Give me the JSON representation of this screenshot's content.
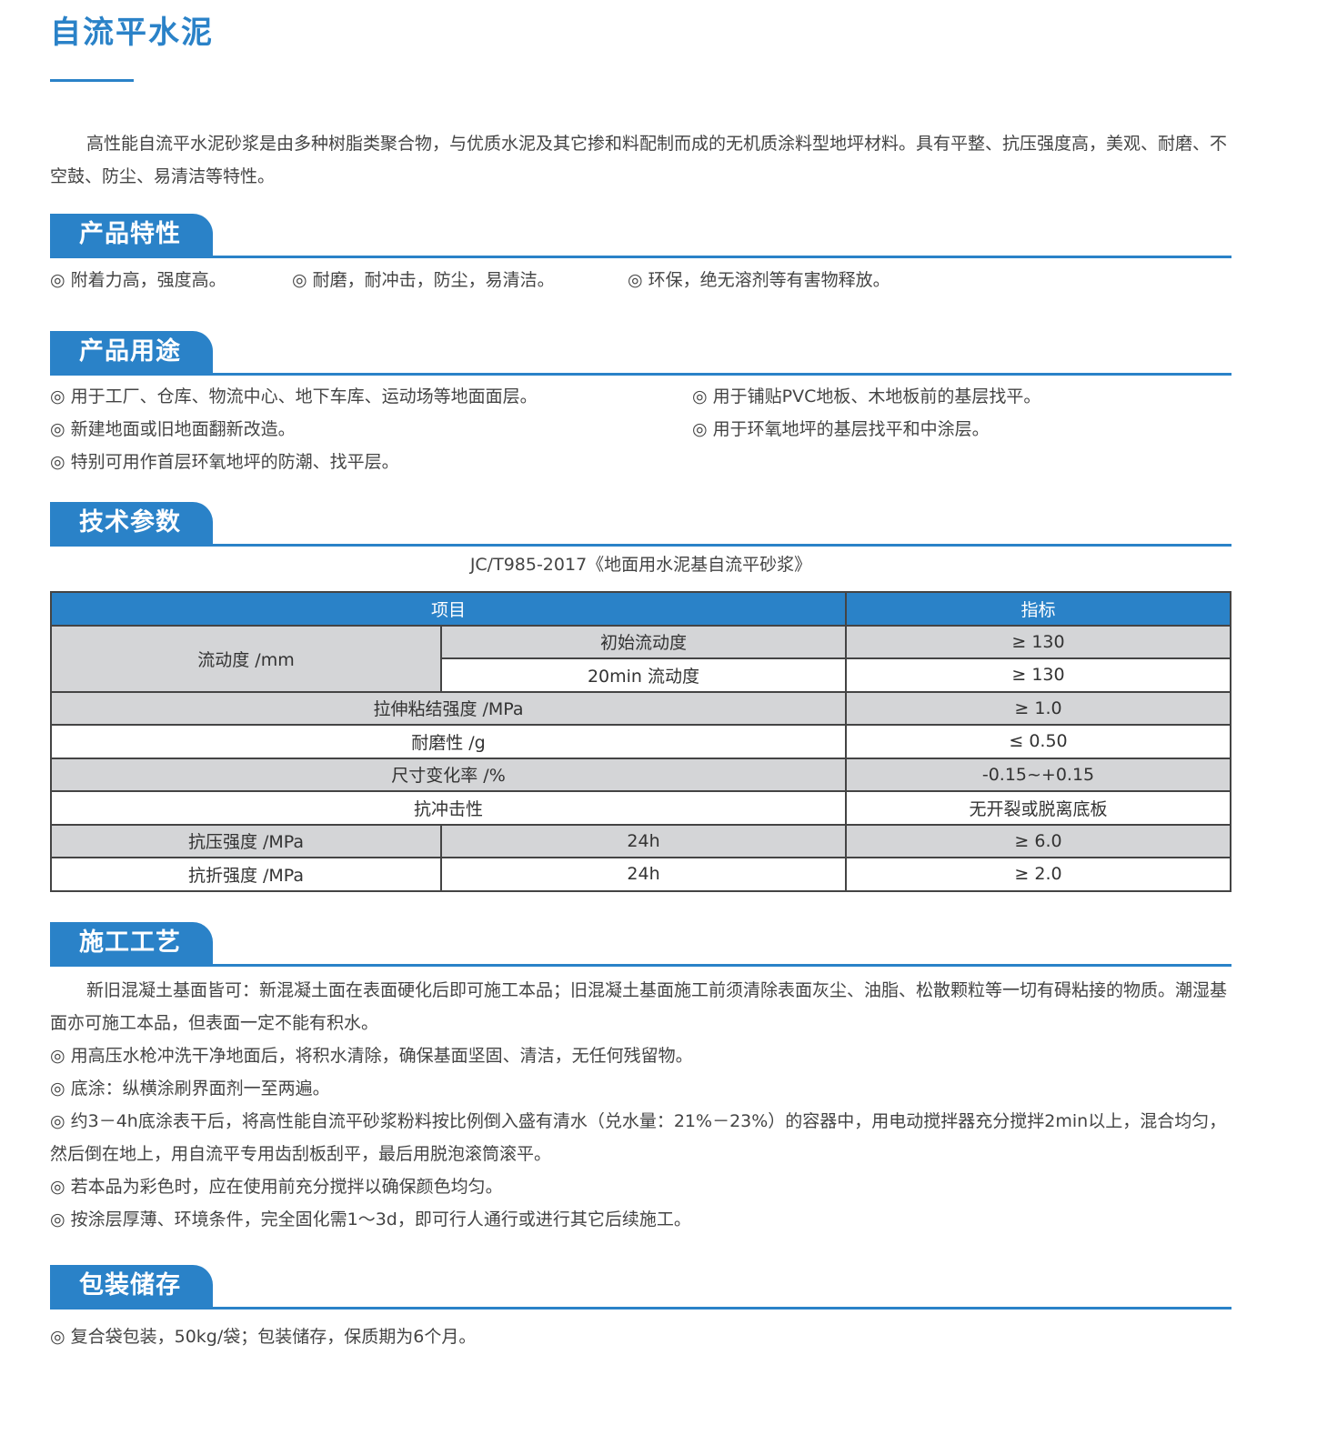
{
  "title": "自流平水泥",
  "intro": "高性能自流平水泥砂浆是由多种树脂类聚合物，与优质水泥及其它掺和料配制而成的无机质涂料型地坪材料。具有平整、抗压强度高，美观、耐磨、不空鼓、防尘、易清洁等特性。",
  "bullet_icon": "double-circle-icon",
  "accent": "#2a82c8",
  "sections": {
    "features": {
      "label": "产品特性",
      "items": [
        "◎ 附着力高，强度高。",
        "◎ 耐磨，耐冲击，防尘，易清洁。",
        "◎ 环保，绝无溶剂等有害物释放。"
      ]
    },
    "uses": {
      "label": "产品用途",
      "items": [
        "◎ 用于工厂、仓库、物流中心、地下车库、运动场等地面面层。",
        "◎ 用于铺贴PVC地板、木地板前的基层找平。",
        "◎ 新建地面或旧地面翻新改造。",
        "◎ 用于环氧地坪的基层找平和中涂层。",
        "◎ 特别可用作首层环氧地坪的防潮、找平层。"
      ]
    },
    "tech": {
      "label": "技术参数",
      "standard": "JC/T985-2017《地面用水泥基自流平砂浆》",
      "header": [
        "项目",
        "指标"
      ],
      "rows": [
        {
          "name": "流动度 /mm",
          "sub": "初始流动度",
          "value": "≥ 130"
        },
        {
          "sub": "20min 流动度",
          "value": "≥ 130"
        },
        {
          "name": "拉伸粘结强度 /MPa",
          "value": "≥ 1.0"
        },
        {
          "name": "耐磨性 /g",
          "value": "≤ 0.50"
        },
        {
          "name": "尺寸变化率 /%",
          "value": "-0.15~+0.15"
        },
        {
          "name": "抗冲击性",
          "value": "无开裂或脱离底板"
        },
        {
          "name": "抗压强度 /MPa",
          "sub": "24h",
          "value": "≥ 6.0"
        },
        {
          "name": "抗折强度 /MPa",
          "sub": "24h",
          "value": "≥ 2.0"
        }
      ]
    },
    "process": {
      "label": "施工工艺",
      "intro": "新旧混凝土基面皆可：新混凝土面在表面硬化后即可施工本品；旧混凝土基面施工前须清除表面灰尘、油脂、松散颗粒等一切有碍粘接的物质。潮湿基面亦可施工本品，但表面一定不能有积水。",
      "items": [
        "◎ 用高压水枪冲洗干净地面后，将积水清除，确保基面坚固、清洁，无任何残留物。",
        "◎ 底涂：纵横涂刷界面剂一至两遍。",
        "◎ 约3－4h底涂表干后，将高性能自流平砂浆粉料按比例倒入盛有清水（兑水量：21%－23%）的容器中，用电动搅拌器充分搅拌2min以上，混合均匀，然后倒在地上，用自流平专用齿刮板刮平，最后用脱泡滚筒滚平。",
        "◎ 若本品为彩色时，应在使用前充分搅拌以确保颜色均匀。",
        "◎ 按涂层厚薄、环境条件，完全固化需1～3d，即可行人通行或进行其它后续施工。"
      ]
    },
    "storage": {
      "label": "包装储存",
      "items": [
        "◎ 复合袋包装，50kg/袋；包装储存，保质期为6个月。"
      ]
    }
  }
}
